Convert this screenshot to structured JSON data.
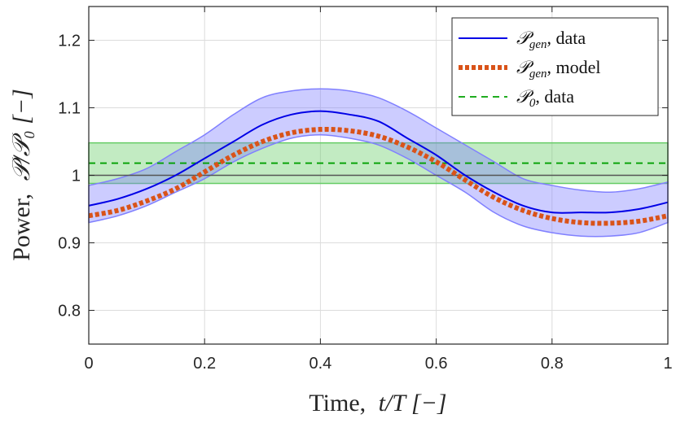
{
  "chart_data": {
    "type": "line",
    "x_axis": {
      "label_prefix": "Time,",
      "label_math": "t/T [−]",
      "range": [
        0,
        1
      ],
      "ticks": [
        0,
        0.2,
        0.4,
        0.6,
        0.8,
        1
      ],
      "tick_labels": [
        "0",
        "0.2",
        "0.4",
        "0.6",
        "0.8",
        "1"
      ]
    },
    "y_axis": {
      "label_prefix": "Power,",
      "label_math": "𝒫/𝒫₀ [−]",
      "range": [
        0.75,
        1.25
      ],
      "ticks": [
        0.8,
        0.9,
        1.0,
        1.1,
        1.2
      ],
      "tick_labels": [
        "0.8",
        "0.9",
        "1",
        "1.1",
        "1.2"
      ]
    },
    "grid": true,
    "legend_position": "top-right",
    "reference_line": {
      "y": 1.0,
      "color": "#555555"
    },
    "series": [
      {
        "name": "P_gen, data",
        "legend_symbol": "𝒫",
        "legend_subscript": "gen",
        "legend_suffix": ", data",
        "style": "solid",
        "color": "#0000e6",
        "band_color": "#8080ff",
        "x": [
          0,
          0.05,
          0.1,
          0.15,
          0.2,
          0.25,
          0.3,
          0.35,
          0.4,
          0.45,
          0.5,
          0.55,
          0.6,
          0.65,
          0.7,
          0.75,
          0.8,
          0.85,
          0.9,
          0.95,
          1.0
        ],
        "y": [
          0.955,
          0.965,
          0.98,
          1.0,
          1.025,
          1.05,
          1.075,
          1.09,
          1.095,
          1.09,
          1.08,
          1.055,
          1.03,
          1.0,
          0.975,
          0.955,
          0.945,
          0.945,
          0.945,
          0.95,
          0.96
        ],
        "band_upper": [
          0.985,
          0.995,
          1.01,
          1.035,
          1.06,
          1.09,
          1.115,
          1.125,
          1.128,
          1.125,
          1.115,
          1.095,
          1.07,
          1.045,
          1.02,
          0.995,
          0.985,
          0.978,
          0.975,
          0.98,
          0.99
        ],
        "band_lower": [
          0.93,
          0.94,
          0.955,
          0.975,
          0.995,
          1.02,
          1.04,
          1.055,
          1.06,
          1.055,
          1.045,
          1.025,
          1.0,
          0.975,
          0.945,
          0.925,
          0.915,
          0.91,
          0.91,
          0.915,
          0.93
        ]
      },
      {
        "name": "P_gen, model",
        "legend_symbol": "𝒫",
        "legend_subscript": "gen",
        "legend_suffix": ", model",
        "style": "dotted",
        "color": "#d95319",
        "x": [
          0,
          0.05,
          0.1,
          0.15,
          0.2,
          0.25,
          0.3,
          0.35,
          0.4,
          0.45,
          0.5,
          0.55,
          0.6,
          0.65,
          0.7,
          0.75,
          0.8,
          0.85,
          0.9,
          0.95,
          1.0
        ],
        "y": [
          0.94,
          0.948,
          0.962,
          0.98,
          1.005,
          1.03,
          1.05,
          1.063,
          1.068,
          1.066,
          1.058,
          1.042,
          1.02,
          0.993,
          0.967,
          0.948,
          0.936,
          0.93,
          0.929,
          0.932,
          0.94
        ]
      },
      {
        "name": "P_0, data",
        "legend_symbol": "𝒫",
        "legend_subscript": "0",
        "legend_suffix": ", data",
        "style": "dashed",
        "color": "#00a000",
        "band_color": "#66cc66",
        "x": [
          0,
          1
        ],
        "y": [
          1.018,
          1.018
        ],
        "band_upper": [
          1.048,
          1.048
        ],
        "band_lower": [
          0.988,
          0.988
        ]
      }
    ]
  }
}
